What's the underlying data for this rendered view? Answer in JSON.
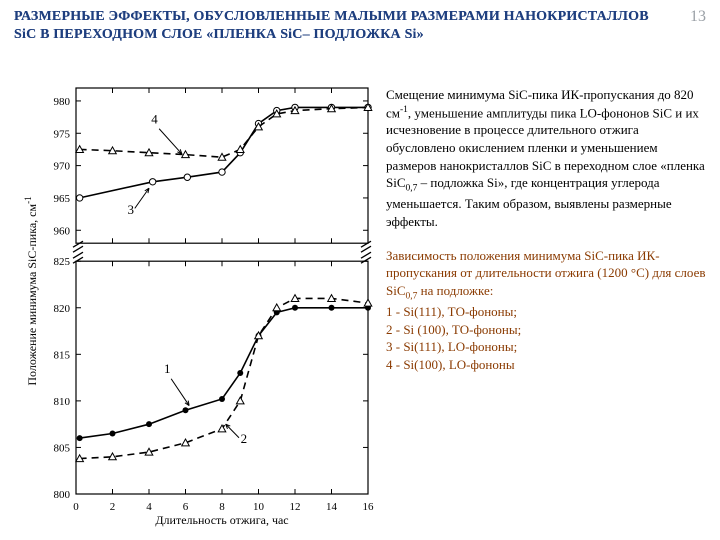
{
  "page_number": "13",
  "title": "РАЗМЕРНЫЕ ЭФФЕКТЫ, ОБУСЛОВЛЕННЫЕ МАЛЫМИ РАЗМЕРАМИ НАНОКРИСТАЛЛОВ SiC В ПЕРЕХОДНОМ СЛОЕ «ПЛЕНКА SiC– ПОДЛОЖКА Si»",
  "paragraph1_parts": {
    "a": "Смещение минимума SiC-пика ИК-пропускания до 820 см",
    "b": ", уменьшение амплитуды пика LO-фононов SiC и их исчезновение в процессе  длительного отжига обусловлено окислением пленки и уменьшением размеров нанокристаллов SiC в переходном слое «пленка SiC",
    "c": " – подложка Si», где концентрация углерода уменьшается. Таким образом, выявлены размерные эффекты."
  },
  "paragraph2_parts": {
    "head": "Зависимость положения минимума SiC-пика ИК-пропускания от длительности отжига (1200 °С) для слоев SiC",
    "tail": " на подложке:",
    "l1": "1 - Si(111), TО-фононы;",
    "l2": "2 - Si (100), TО-фононы;",
    "l3": "3 - Si(111), LO-фононы;",
    "l4": "4 - Si(100), LO-фононы"
  },
  "sup_minus1": "-1",
  "sub_07": "0,7",
  "chart": {
    "background": "#ffffff",
    "axis_color": "#000000",
    "grid_color": "#e0e0e0",
    "font_size_axis": 11,
    "font_size_label": 12,
    "x_label": "Длительность отжига, час",
    "y_label": "Положение минимума SiC-пика, см",
    "y_label_sup": "-1",
    "x_ticks": [
      0,
      2,
      4,
      6,
      8,
      10,
      12,
      14,
      16
    ],
    "x_range": [
      0,
      16
    ],
    "panels": {
      "top": {
        "y_ticks": [
          960,
          965,
          970,
          975,
          980
        ],
        "y_range": [
          958,
          982
        ],
        "series": [
          {
            "id": "3",
            "style": "solid",
            "marker": "circle-open",
            "color": "#000000",
            "label_xy": [
              3.0,
              962.5
            ],
            "arrow_to": [
              4.0,
              966.5
            ],
            "points": [
              [
                0.2,
                965
              ],
              [
                4.2,
                967.5
              ],
              [
                6.1,
                968.2
              ],
              [
                8.0,
                969
              ],
              [
                9.0,
                972
              ],
              [
                10.0,
                976.5
              ],
              [
                11.0,
                978.5
              ],
              [
                12.0,
                979
              ],
              [
                14.0,
                979
              ],
              [
                16.0,
                979
              ]
            ]
          },
          {
            "id": "4",
            "style": "dashed",
            "marker": "triangle-open",
            "color": "#000000",
            "label_xy": [
              4.3,
              976.5
            ],
            "arrow_to": [
              5.8,
              971.8
            ],
            "points": [
              [
                0.2,
                972.5
              ],
              [
                2.0,
                972.3
              ],
              [
                4.0,
                972
              ],
              [
                6.0,
                971.7
              ],
              [
                8.0,
                971.3
              ],
              [
                9.0,
                972.5
              ],
              [
                10.0,
                976
              ],
              [
                11.0,
                978
              ],
              [
                12.0,
                978.5
              ],
              [
                14.0,
                978.8
              ],
              [
                16.0,
                979
              ]
            ]
          }
        ]
      },
      "bottom": {
        "y_ticks": [
          800,
          805,
          810,
          815,
          820,
          825
        ],
        "y_range": [
          800,
          825
        ],
        "series": [
          {
            "id": "1",
            "style": "solid",
            "marker": "circle-filled",
            "color": "#000000",
            "label_xy": [
              5.0,
              813.0
            ],
            "arrow_to": [
              6.2,
              809.5
            ],
            "points": [
              [
                0.2,
                806
              ],
              [
                2.0,
                806.5
              ],
              [
                4.0,
                807.5
              ],
              [
                6.0,
                809
              ],
              [
                8.0,
                810.2
              ],
              [
                9.0,
                813
              ],
              [
                10.0,
                817
              ],
              [
                11.0,
                819.5
              ],
              [
                12.0,
                820
              ],
              [
                14.0,
                820
              ],
              [
                16.0,
                820
              ]
            ]
          },
          {
            "id": "2",
            "style": "dashed",
            "marker": "triangle-open",
            "color": "#000000",
            "label_xy": [
              9.2,
              805.5
            ],
            "arrow_to": [
              8.2,
              807.5
            ],
            "points": [
              [
                0.2,
                803.8
              ],
              [
                2.0,
                804
              ],
              [
                4.0,
                804.5
              ],
              [
                6.0,
                805.5
              ],
              [
                8.0,
                807
              ],
              [
                9.0,
                810
              ],
              [
                10.0,
                817
              ],
              [
                11.0,
                820
              ],
              [
                12.0,
                821
              ],
              [
                14.0,
                821
              ],
              [
                16.0,
                820.5
              ]
            ]
          }
        ]
      }
    }
  }
}
